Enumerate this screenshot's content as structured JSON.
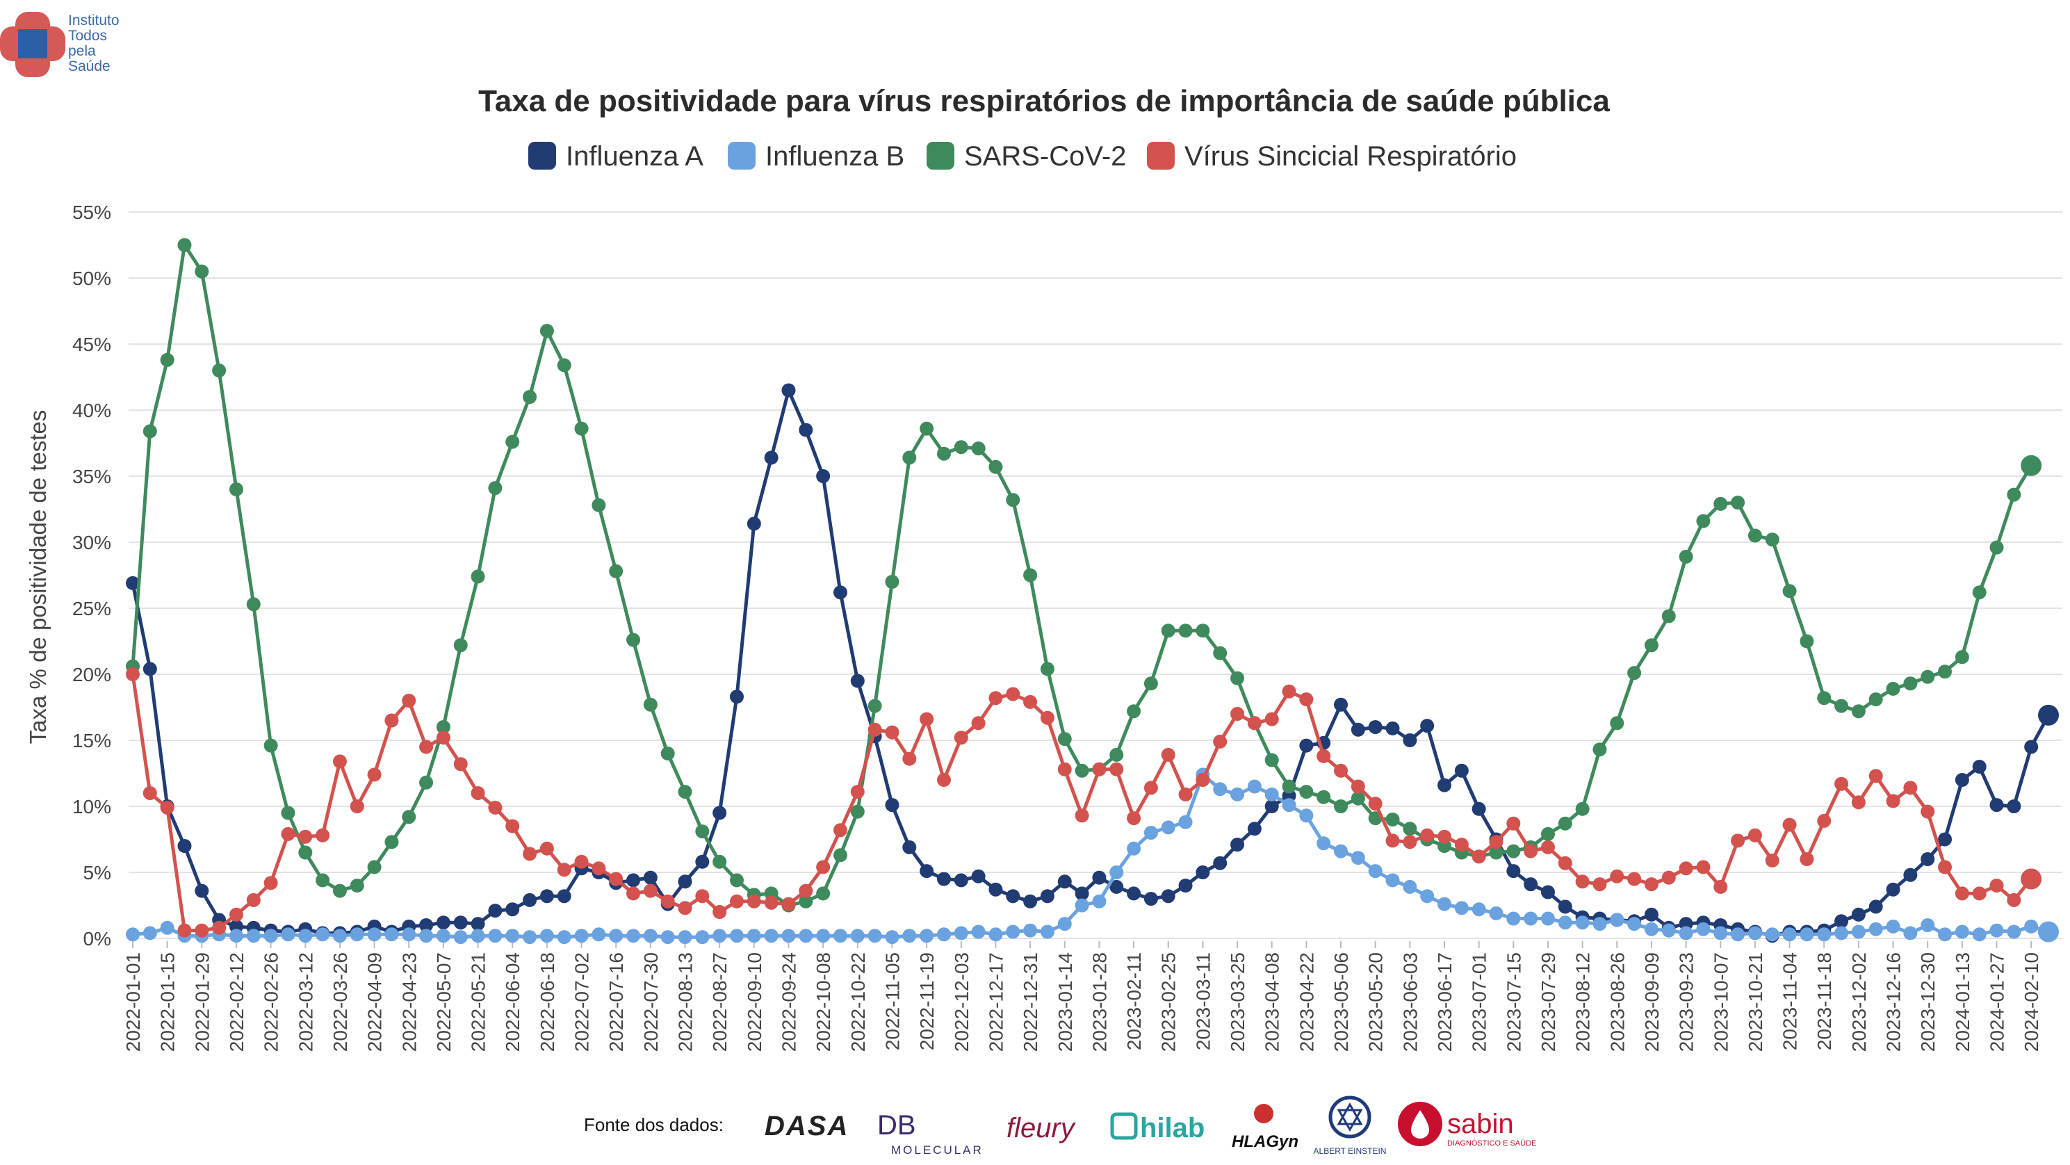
{
  "logo": {
    "lines": [
      "Instituto",
      "Todos",
      "pela",
      "Saúde"
    ]
  },
  "source": {
    "label": "Fonte dos dados:",
    "logos": [
      {
        "name": "dasa",
        "text": "DASA",
        "color": "#222222"
      },
      {
        "name": "db-molecular",
        "text": "DB",
        "sub": "MOLECULAR",
        "color": "#3b2a6b"
      },
      {
        "name": "fleury",
        "text": "fleury",
        "color": "#8a1b3a"
      },
      {
        "name": "hilab",
        "text": "hilab",
        "color": "#2aa5a0"
      },
      {
        "name": "hlagyn",
        "text": "HLAGyn",
        "color": "#111111"
      },
      {
        "name": "einstein",
        "text": "ALBERT EINSTEIN",
        "color": "#1f3a7a"
      },
      {
        "name": "sabin",
        "text": "sabin",
        "sub": "DIAGNÓSTICO E SAÚDE",
        "color": "#c8102e"
      }
    ]
  },
  "colors": {
    "influenza_a": "#213b73",
    "influenza_b": "#6aa2e0",
    "sars": "#3f8a5c",
    "vsr": "#d3524e"
  },
  "chart_data": {
    "type": "line",
    "title": "Taxa de positividade para vírus respiratórios de importância de saúde pública",
    "ylabel": "Taxa % de positividade de testes",
    "xlabel": "",
    "ylim": [
      0,
      55
    ],
    "yticks": [
      "0%",
      "5%",
      "10%",
      "15%",
      "20%",
      "25%",
      "30%",
      "35%",
      "40%",
      "45%",
      "50%",
      "55%"
    ],
    "grid": true,
    "legend_position": "top-center",
    "x_start": "2022-01-01",
    "x_step_days": 7,
    "x_tick_every": 2,
    "x_tick_labels": [
      "2022-01-01",
      "2022-01-15",
      "2022-01-29",
      "2022-02-12",
      "2022-02-26",
      "2022-03-12",
      "2022-03-26",
      "2022-04-09",
      "2022-04-23",
      "2022-05-07",
      "2022-05-21",
      "2022-06-04",
      "2022-06-18",
      "2022-07-02",
      "2022-07-16",
      "2022-07-30",
      "2022-08-13",
      "2022-08-27",
      "2022-09-10",
      "2022-09-24",
      "2022-10-08",
      "2022-10-22",
      "2022-11-05",
      "2022-11-19",
      "2022-12-03",
      "2022-12-17",
      "2022-12-31",
      "2023-01-14",
      "2023-01-28",
      "2023-02-11",
      "2023-02-25",
      "2023-03-11",
      "2023-03-25",
      "2023-04-08",
      "2023-04-22",
      "2023-05-06",
      "2023-05-20",
      "2023-06-03",
      "2023-06-17",
      "2023-07-01",
      "2023-07-15",
      "2023-07-29",
      "2023-08-12",
      "2023-08-26",
      "2023-09-09",
      "2023-09-23",
      "2023-10-07",
      "2023-10-21",
      "2023-11-04",
      "2023-11-18",
      "2023-12-02",
      "2023-12-16",
      "2023-12-30",
      "2024-01-13",
      "2024-01-27",
      "2024-02-10"
    ],
    "series": [
      {
        "name": "Influenza A",
        "key": "influenza_a",
        "values": [
          26.9,
          20.4,
          10.0,
          7.0,
          3.6,
          1.4,
          0.9,
          0.8,
          0.6,
          0.5,
          0.7,
          0.4,
          0.4,
          0.5,
          0.9,
          0.5,
          0.9,
          1.0,
          1.2,
          1.2,
          1.1,
          2.1,
          2.2,
          2.9,
          3.2,
          3.2,
          5.3,
          5.0,
          4.2,
          4.4,
          4.6,
          2.6,
          4.3,
          5.8,
          9.5,
          18.3,
          31.4,
          36.4,
          41.5,
          38.5,
          35.0,
          26.2,
          19.5,
          15.3,
          10.1,
          6.9,
          5.1,
          4.5,
          4.4,
          4.7,
          3.7,
          3.2,
          2.8,
          3.2,
          4.3,
          3.4,
          4.6,
          3.9,
          3.4,
          3.0,
          3.2,
          4.0,
          5.0,
          5.7,
          7.1,
          8.3,
          10.0,
          10.8,
          14.6,
          14.8,
          17.7,
          15.8,
          16.0,
          15.9,
          15.0,
          16.1,
          11.6,
          12.7,
          9.8,
          7.5,
          5.1,
          4.1,
          3.5,
          2.4,
          1.6,
          1.5,
          1.4,
          1.3,
          1.8,
          0.8,
          1.1,
          1.2,
          1.0,
          0.7,
          0.5,
          0.2,
          0.5,
          0.5,
          0.6,
          1.3,
          1.8,
          2.4,
          3.7,
          4.8,
          6.0,
          7.5,
          12.0,
          13.0,
          10.1,
          10.0,
          14.5,
          16.9
        ]
      },
      {
        "name": "Influenza B",
        "key": "influenza_b",
        "values": [
          0.3,
          0.4,
          0.8,
          0.2,
          0.2,
          0.3,
          0.2,
          0.2,
          0.2,
          0.3,
          0.2,
          0.3,
          0.2,
          0.3,
          0.3,
          0.3,
          0.3,
          0.2,
          0.2,
          0.1,
          0.2,
          0.2,
          0.2,
          0.1,
          0.2,
          0.1,
          0.2,
          0.3,
          0.2,
          0.2,
          0.2,
          0.1,
          0.1,
          0.1,
          0.2,
          0.2,
          0.2,
          0.2,
          0.2,
          0.2,
          0.2,
          0.2,
          0.2,
          0.2,
          0.1,
          0.2,
          0.2,
          0.3,
          0.4,
          0.5,
          0.3,
          0.5,
          0.6,
          0.5,
          1.1,
          2.5,
          2.8,
          5.0,
          6.8,
          8.0,
          8.4,
          8.8,
          12.4,
          11.3,
          10.9,
          11.5,
          10.9,
          10.1,
          9.3,
          7.2,
          6.6,
          6.1,
          5.1,
          4.4,
          3.9,
          3.2,
          2.6,
          2.3,
          2.2,
          1.9,
          1.5,
          1.5,
          1.5,
          1.2,
          1.2,
          1.1,
          1.4,
          1.1,
          0.7,
          0.6,
          0.4,
          0.7,
          0.4,
          0.3,
          0.4,
          0.3,
          0.3,
          0.3,
          0.3,
          0.4,
          0.5,
          0.7,
          0.9,
          0.4,
          1.0,
          0.3,
          0.5,
          0.3,
          0.6,
          0.5,
          0.9,
          0.5
        ]
      },
      {
        "name": "SARS-CoV-2",
        "key": "sars",
        "values": [
          20.6,
          38.4,
          43.8,
          52.5,
          50.5,
          43.0,
          34.0,
          25.3,
          14.6,
          9.5,
          6.5,
          4.4,
          3.6,
          4.0,
          5.4,
          7.3,
          9.2,
          11.8,
          16.0,
          22.2,
          27.4,
          34.1,
          37.6,
          41.0,
          46.0,
          43.4,
          38.6,
          32.8,
          27.8,
          22.6,
          17.7,
          14.0,
          11.1,
          8.1,
          5.8,
          4.4,
          3.3,
          3.4,
          2.5,
          2.8,
          3.4,
          6.3,
          9.6,
          17.6,
          27.0,
          36.4,
          38.6,
          36.7,
          37.2,
          37.1,
          35.7,
          33.2,
          27.5,
          20.4,
          15.1,
          12.7,
          12.8,
          13.9,
          17.2,
          19.3,
          23.3,
          23.3,
          23.3,
          21.6,
          19.7,
          16.3,
          13.5,
          11.5,
          11.1,
          10.7,
          10.0,
          10.6,
          9.1,
          9.0,
          8.3,
          7.5,
          7.0,
          6.5,
          6.2,
          6.5,
          6.6,
          6.9,
          7.9,
          8.7,
          9.8,
          14.3,
          16.3,
          20.1,
          22.2,
          24.4,
          28.9,
          31.6,
          32.9,
          33.0,
          30.5,
          30.2,
          26.3,
          22.5,
          18.2,
          17.6,
          17.2,
          18.1,
          18.9,
          19.3,
          19.8,
          20.2,
          21.3,
          26.2,
          29.6,
          33.6,
          35.8
        ]
      },
      {
        "name": "Vírus Sincicial Respiratório",
        "key": "vsr",
        "values": [
          20.0,
          11.0,
          9.9,
          0.6,
          0.6,
          0.8,
          1.8,
          2.9,
          4.2,
          7.9,
          7.7,
          7.8,
          13.4,
          10.0,
          12.4,
          16.5,
          18.0,
          14.5,
          15.2,
          13.2,
          11.0,
          9.9,
          8.5,
          6.4,
          6.8,
          5.2,
          5.8,
          5.3,
          4.5,
          3.4,
          3.6,
          2.8,
          2.3,
          3.2,
          2.0,
          2.8,
          2.8,
          2.7,
          2.6,
          3.6,
          5.4,
          8.2,
          11.1,
          15.8,
          15.6,
          13.6,
          16.6,
          12.0,
          15.2,
          16.3,
          18.2,
          18.5,
          17.9,
          16.7,
          12.8,
          9.3,
          12.8,
          12.8,
          9.1,
          11.4,
          13.9,
          10.9,
          12.0,
          14.9,
          17.0,
          16.3,
          16.6,
          18.7,
          18.1,
          13.8,
          12.7,
          11.5,
          10.2,
          7.4,
          7.3,
          7.8,
          7.7,
          7.1,
          6.2,
          7.3,
          8.7,
          6.6,
          6.9,
          5.7,
          4.3,
          4.1,
          4.7,
          4.5,
          4.1,
          4.6,
          5.3,
          5.4,
          3.9,
          7.4,
          7.8,
          5.9,
          8.6,
          6.0,
          8.9,
          11.7,
          10.3,
          12.3,
          10.4,
          11.4,
          9.6,
          5.4,
          3.4,
          3.4,
          4.0,
          2.9,
          4.5
        ]
      }
    ]
  }
}
